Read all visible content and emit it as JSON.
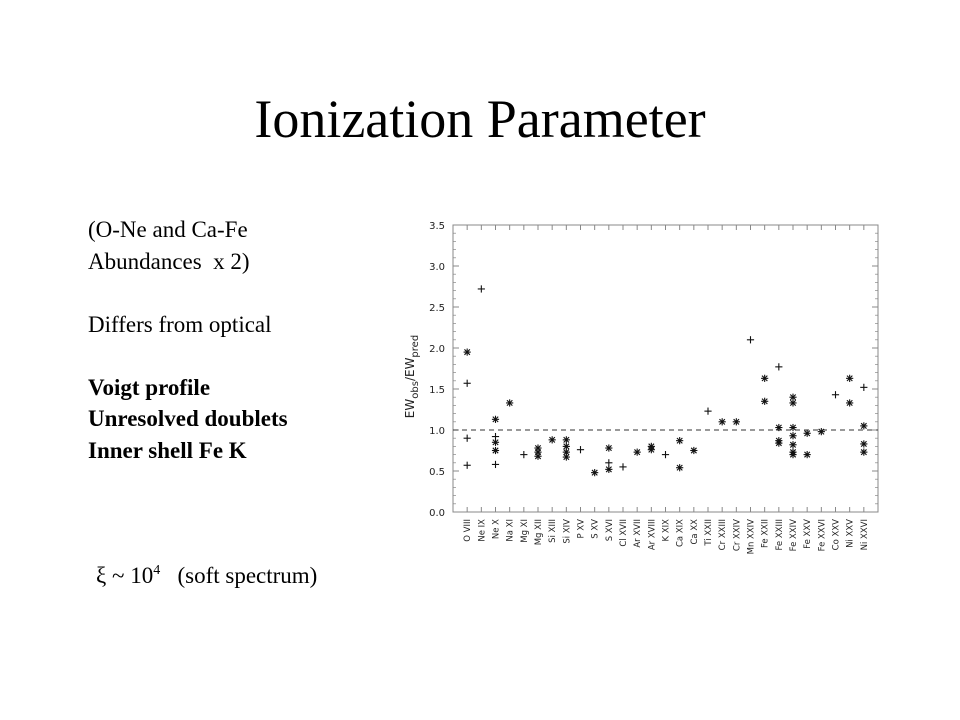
{
  "slide": {
    "title": "Ionization Parameter",
    "lines": [
      {
        "text": "(O-Ne and Ca-Fe",
        "bold": false
      },
      {
        "text": "Abundances  x 2)",
        "bold": false
      },
      {
        "text": "",
        "bold": false
      },
      {
        "text": "Differs from optical",
        "bold": false
      },
      {
        "text": "",
        "bold": false
      },
      {
        "text": "Voigt profile",
        "bold": true
      },
      {
        "text": "Unresolved doublets",
        "bold": true
      },
      {
        "text": "Inner shell Fe K",
        "bold": true
      }
    ],
    "xi_symbol": "ξ",
    "xi_approx": " ~ 10",
    "xi_exponent": "4",
    "xi_note": "   (soft spectrum)"
  },
  "chart_data": {
    "type": "scatter",
    "ylabel": "EW_obs/EW_pred",
    "ylim": [
      0.0,
      3.5
    ],
    "yticks": [
      "0.0",
      "0.5",
      "1.0",
      "1.5",
      "2.0",
      "2.5",
      "3.0",
      "3.5"
    ],
    "reference_line": 1.0,
    "categories": [
      "O VIII",
      "Ne IX",
      "Ne X",
      "Na XI",
      "Mg XI",
      "Mg XII",
      "Si XIII",
      "Si XIV",
      "P XV",
      "S XV",
      "S XVI",
      "Cl XVII",
      "Ar XVII",
      "Ar XVIII",
      "K XIX",
      "Ca XIX",
      "Ca XX",
      "Ti XXII",
      "Cr XXIII",
      "Cr XXIV",
      "Mn XXIV",
      "Fe XXII",
      "Fe XXIII",
      "Fe XXIV",
      "Fe XXV",
      "Fe XXVI",
      "Co XXV",
      "Ni XXV",
      "Ni XXVI"
    ],
    "points": [
      {
        "cat": 0,
        "y": 1.95,
        "marker": "star"
      },
      {
        "cat": 0,
        "y": 1.57,
        "marker": "plus"
      },
      {
        "cat": 0,
        "y": 0.9,
        "marker": "plus"
      },
      {
        "cat": 0,
        "y": 0.57,
        "marker": "plus"
      },
      {
        "cat": 1,
        "y": 2.72,
        "marker": "plus"
      },
      {
        "cat": 2,
        "y": 1.13,
        "marker": "star"
      },
      {
        "cat": 2,
        "y": 0.92,
        "marker": "plus"
      },
      {
        "cat": 2,
        "y": 0.85,
        "marker": "star"
      },
      {
        "cat": 2,
        "y": 0.75,
        "marker": "star"
      },
      {
        "cat": 2,
        "y": 0.58,
        "marker": "plus"
      },
      {
        "cat": 3,
        "y": 1.33,
        "marker": "star"
      },
      {
        "cat": 4,
        "y": 0.7,
        "marker": "plus"
      },
      {
        "cat": 5,
        "y": 0.78,
        "marker": "star"
      },
      {
        "cat": 5,
        "y": 0.73,
        "marker": "star"
      },
      {
        "cat": 5,
        "y": 0.68,
        "marker": "star"
      },
      {
        "cat": 6,
        "y": 0.88,
        "marker": "star"
      },
      {
        "cat": 7,
        "y": 0.88,
        "marker": "star"
      },
      {
        "cat": 7,
        "y": 0.8,
        "marker": "star"
      },
      {
        "cat": 7,
        "y": 0.73,
        "marker": "star"
      },
      {
        "cat": 7,
        "y": 0.67,
        "marker": "star"
      },
      {
        "cat": 8,
        "y": 0.76,
        "marker": "plus"
      },
      {
        "cat": 9,
        "y": 0.48,
        "marker": "star"
      },
      {
        "cat": 10,
        "y": 0.78,
        "marker": "star"
      },
      {
        "cat": 10,
        "y": 0.6,
        "marker": "plus"
      },
      {
        "cat": 10,
        "y": 0.52,
        "marker": "star"
      },
      {
        "cat": 11,
        "y": 0.55,
        "marker": "plus"
      },
      {
        "cat": 12,
        "y": 0.73,
        "marker": "star"
      },
      {
        "cat": 13,
        "y": 0.8,
        "marker": "star"
      },
      {
        "cat": 13,
        "y": 0.76,
        "marker": "star"
      },
      {
        "cat": 14,
        "y": 0.7,
        "marker": "plus"
      },
      {
        "cat": 15,
        "y": 0.87,
        "marker": "star"
      },
      {
        "cat": 15,
        "y": 0.54,
        "marker": "star"
      },
      {
        "cat": 16,
        "y": 0.75,
        "marker": "star"
      },
      {
        "cat": 17,
        "y": 1.23,
        "marker": "plus"
      },
      {
        "cat": 18,
        "y": 1.1,
        "marker": "star"
      },
      {
        "cat": 19,
        "y": 1.1,
        "marker": "star"
      },
      {
        "cat": 20,
        "y": 2.1,
        "marker": "plus"
      },
      {
        "cat": 21,
        "y": 1.63,
        "marker": "star"
      },
      {
        "cat": 21,
        "y": 1.35,
        "marker": "star"
      },
      {
        "cat": 22,
        "y": 1.77,
        "marker": "plus"
      },
      {
        "cat": 22,
        "y": 1.03,
        "marker": "star"
      },
      {
        "cat": 22,
        "y": 0.87,
        "marker": "star"
      },
      {
        "cat": 22,
        "y": 0.84,
        "marker": "star"
      },
      {
        "cat": 23,
        "y": 1.4,
        "marker": "star"
      },
      {
        "cat": 23,
        "y": 1.33,
        "marker": "star"
      },
      {
        "cat": 23,
        "y": 1.03,
        "marker": "star"
      },
      {
        "cat": 23,
        "y": 0.93,
        "marker": "star"
      },
      {
        "cat": 23,
        "y": 0.82,
        "marker": "star"
      },
      {
        "cat": 23,
        "y": 0.73,
        "marker": "star"
      },
      {
        "cat": 23,
        "y": 0.7,
        "marker": "star"
      },
      {
        "cat": 24,
        "y": 0.96,
        "marker": "star"
      },
      {
        "cat": 24,
        "y": 0.7,
        "marker": "star"
      },
      {
        "cat": 25,
        "y": 0.98,
        "marker": "star"
      },
      {
        "cat": 26,
        "y": 1.43,
        "marker": "plus"
      },
      {
        "cat": 27,
        "y": 1.63,
        "marker": "star"
      },
      {
        "cat": 27,
        "y": 1.33,
        "marker": "star"
      },
      {
        "cat": 28,
        "y": 1.52,
        "marker": "plus"
      },
      {
        "cat": 28,
        "y": 1.05,
        "marker": "star"
      },
      {
        "cat": 28,
        "y": 0.83,
        "marker": "star"
      },
      {
        "cat": 28,
        "y": 0.73,
        "marker": "star"
      }
    ],
    "grid": false,
    "colors": {
      "markers": "#111111",
      "axes": "#888888",
      "reference_line": "#333333"
    }
  }
}
